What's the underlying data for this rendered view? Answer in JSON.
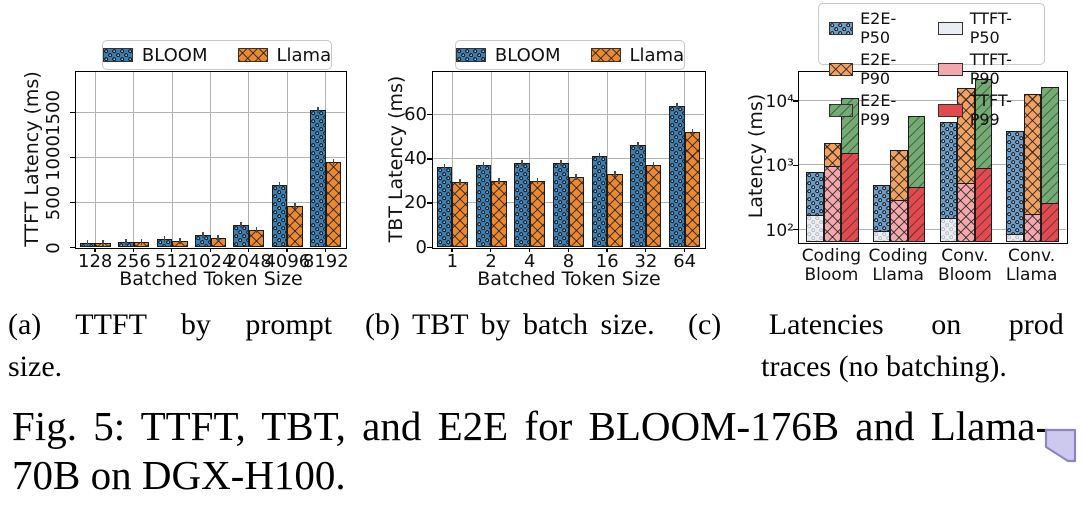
{
  "colors": {
    "bloom_blue": "#3d7eb1",
    "llama_orange": "#e98a32",
    "e2e_p50_blue": "#6d9dc6",
    "e2e_p90_orange": "#f0a164",
    "e2e_p99_green": "#73ab73",
    "ttft_p50_white": "#e9edf4",
    "ttft_p90_pink": "#f2a8ac",
    "ttft_p99_red": "#e14b50",
    "bar_edge": "#1c1c1c",
    "grid": "#b3b3b3",
    "annotation_fill": "#cdc8ee",
    "annotation_border": "#8d85c3"
  },
  "chart_data": [
    {
      "id": "a",
      "type": "bar",
      "title": "",
      "xlabel": "Batched Token Size",
      "ylabel": "TTFT Latency (ms)",
      "categories": [
        "128",
        "256",
        "512",
        "1024",
        "2048",
        "4096",
        "8192"
      ],
      "series": [
        {
          "name": "BLOOM",
          "values": [
            48,
            60,
            90,
            134,
            243,
            690,
            1520
          ]
        },
        {
          "name": "Llama",
          "values": [
            46,
            52,
            62,
            105,
            185,
            460,
            945
          ]
        }
      ],
      "yticks": [
        0,
        500,
        1000,
        1500
      ],
      "ylim": [
        0,
        1947
      ],
      "grid": true,
      "legend_position": "top",
      "error_bars": true
    },
    {
      "id": "b",
      "type": "bar",
      "title": "",
      "xlabel": "Batched Token Size",
      "ylabel": "TBT Latency (ms)",
      "categories": [
        "1",
        "2",
        "4",
        "8",
        "16",
        "32",
        "64"
      ],
      "series": [
        {
          "name": "BLOOM",
          "values": [
            36,
            37,
            38,
            38,
            41,
            46,
            63.5
          ]
        },
        {
          "name": "Llama",
          "values": [
            29.5,
            30,
            30,
            31.5,
            33,
            37,
            52
          ]
        }
      ],
      "yticks": [
        0,
        20,
        40,
        60
      ],
      "ylim": [
        0,
        79
      ],
      "grid": true,
      "legend_position": "top",
      "error_bars": true
    },
    {
      "id": "c",
      "type": "bar",
      "scale": "log",
      "title": "",
      "xlabel": "",
      "ylabel": "Latency (ms)",
      "categories": [
        "Coding Bloom",
        "Coding Llama",
        "Conv. Bloom",
        "Conv. Llama"
      ],
      "tick_lines": [
        [
          "Coding",
          "Bloom"
        ],
        [
          "Coding",
          "Llama"
        ],
        [
          "Conv.",
          "Bloom"
        ],
        [
          "Conv.",
          "Llama"
        ]
      ],
      "series": [
        {
          "name": "E2E-P50",
          "values": [
            780,
            480,
            4600,
            3400
          ]
        },
        {
          "name": "E2E-P90",
          "values": [
            2200,
            1700,
            15500,
            12500
          ]
        },
        {
          "name": "E2E-P99",
          "values": [
            11000,
            5800,
            22000,
            16500
          ]
        },
        {
          "name": "TTFT-P50",
          "values": [
            165,
            95,
            150,
            85
          ]
        },
        {
          "name": "TTFT-P90",
          "values": [
            950,
            280,
            520,
            170
          ]
        },
        {
          "name": "TTFT-P99",
          "values": [
            1550,
            450,
            900,
            255
          ]
        }
      ],
      "yticks": [
        100,
        1000,
        10000
      ],
      "ytick_labels": [
        "10²",
        "10³",
        "10⁴"
      ],
      "ylim": [
        63,
        27800
      ],
      "grid": "horizontal",
      "legend_position": "top"
    }
  ],
  "subcaptions": {
    "a": {
      "lines": [
        "(a) TTFT by prompt",
        "size."
      ]
    },
    "b": {
      "lines": [
        "(b) TBT by batch size."
      ]
    },
    "c": {
      "lines": [
        "(c) Latencies on prod",
        "traces (no batching)."
      ]
    }
  },
  "figure_caption": {
    "lines": [
      "Fig. 5: TTFT, TBT, and E2E for BLOOM-176B and Llama-",
      "70B on DGX-H100."
    ]
  },
  "annotation": {
    "type": "comment-marker"
  }
}
